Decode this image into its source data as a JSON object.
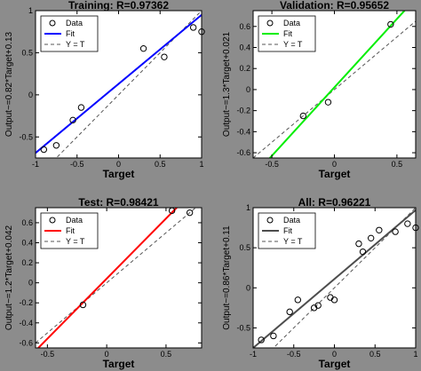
{
  "chart_data": [
    {
      "type": "scatter",
      "title": "Training: R=0.97362",
      "xlabel": "Target",
      "ylabel": "Output~=0.82*Target+0.13",
      "xlim": [
        -1,
        1
      ],
      "ylim": [
        -0.75,
        1
      ],
      "xticks": [
        "-1",
        "-0.5",
        "0",
        "0.5",
        "1"
      ],
      "yticks": [
        "-0.5",
        "0",
        "0.5",
        "1"
      ],
      "fit": {
        "slope": 0.82,
        "intercept": 0.13,
        "color": "#0000ff"
      },
      "data": {
        "x": [
          -0.9,
          -0.75,
          -0.55,
          -0.45,
          0.3,
          0.55,
          0.9,
          1.0
        ],
        "y": [
          -0.65,
          -0.6,
          -0.3,
          -0.15,
          0.55,
          0.45,
          0.8,
          0.75
        ]
      },
      "legend": [
        "Data",
        "Fit",
        "Y = T"
      ],
      "legend_position": "top-left"
    },
    {
      "type": "scatter",
      "title": "Validation: R=0.95652",
      "xlabel": "Target",
      "ylabel": "Output~=1.3*Target+0.021",
      "xlim": [
        -0.65,
        0.65
      ],
      "ylim": [
        -0.65,
        0.75
      ],
      "xticks": [
        "-0.5",
        "0",
        "0.5"
      ],
      "yticks": [
        "-0.6",
        "-0.4",
        "-0.2",
        "0",
        "0.2",
        "0.4",
        "0.6"
      ],
      "fit": {
        "slope": 1.3,
        "intercept": 0.021,
        "color": "#00ee00"
      },
      "data": {
        "x": [
          -0.25,
          -0.05,
          0.45
        ],
        "y": [
          -0.25,
          -0.12,
          0.62
        ]
      },
      "legend": [
        "Data",
        "Fit",
        "Y = T"
      ],
      "legend_position": "top-left"
    },
    {
      "type": "scatter",
      "title": "Test: R=0.98421",
      "xlabel": "Target",
      "ylabel": "Output~=1.2*Target+0.042",
      "xlim": [
        -0.6,
        0.8
      ],
      "ylim": [
        -0.65,
        0.75
      ],
      "xticks": [
        "-0.5",
        "0",
        "0.5"
      ],
      "yticks": [
        "-0.6",
        "-0.4",
        "-0.2",
        "0",
        "0.2",
        "0.4",
        "0.6"
      ],
      "fit": {
        "slope": 1.2,
        "intercept": 0.042,
        "color": "#ff0000"
      },
      "data": {
        "x": [
          -0.2,
          0.55,
          0.7
        ],
        "y": [
          -0.22,
          0.72,
          0.7
        ]
      },
      "legend": [
        "Data",
        "Fit",
        "Y = T"
      ],
      "legend_position": "top-left"
    },
    {
      "type": "scatter",
      "title": "All: R=0.96221",
      "xlabel": "Target",
      "ylabel": "Output~=0.86*Target+0.11",
      "xlim": [
        -1,
        1
      ],
      "ylim": [
        -0.75,
        1
      ],
      "xticks": [
        "-1",
        "-0.5",
        "0",
        "0.5",
        "1"
      ],
      "yticks": [
        "-0.5",
        "0",
        "0.5",
        "1"
      ],
      "fit": {
        "slope": 0.86,
        "intercept": 0.11,
        "color": "#4d4d4d"
      },
      "data": {
        "x": [
          -0.9,
          -0.75,
          -0.55,
          -0.45,
          -0.25,
          -0.2,
          -0.05,
          0.0,
          0.3,
          0.35,
          0.45,
          0.55,
          0.75,
          0.9,
          1.0
        ],
        "y": [
          -0.65,
          -0.6,
          -0.3,
          -0.15,
          -0.25,
          -0.22,
          -0.12,
          -0.15,
          0.55,
          0.45,
          0.62,
          0.72,
          0.7,
          0.8,
          0.75
        ]
      },
      "legend": [
        "Data",
        "Fit",
        "Y = T"
      ],
      "legend_position": "top-left"
    }
  ]
}
